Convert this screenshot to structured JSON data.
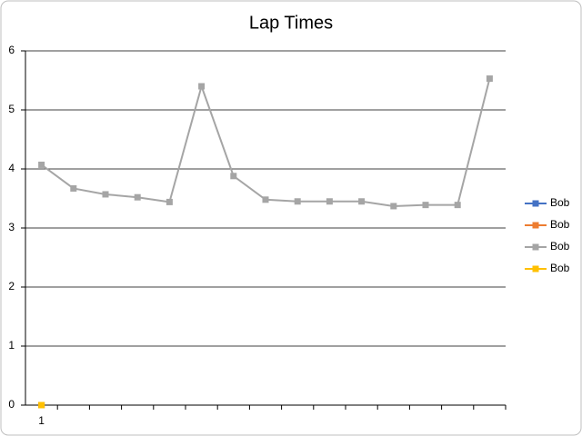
{
  "chart_data": {
    "type": "line",
    "title": "Lap Times",
    "categories": [
      "1",
      null,
      null,
      null,
      null,
      null,
      null,
      null,
      null,
      null,
      null,
      null,
      null,
      null,
      null
    ],
    "series": [
      {
        "name": "Bob",
        "color": "#4472c4",
        "values": [
          0,
          null,
          null,
          null,
          null,
          null,
          null,
          null,
          null,
          null,
          null,
          null,
          null,
          null,
          null
        ]
      },
      {
        "name": "Bob",
        "color": "#ed7d31",
        "values": [
          0,
          null,
          null,
          null,
          null,
          null,
          null,
          null,
          null,
          null,
          null,
          null,
          null,
          null,
          null
        ]
      },
      {
        "name": "Bob",
        "color": "#a5a5a5",
        "values": [
          4.07,
          3.67,
          3.57,
          3.52,
          3.44,
          5.4,
          3.88,
          3.48,
          3.45,
          3.45,
          3.45,
          3.37,
          3.39,
          3.39,
          5.53
        ]
      },
      {
        "name": "Bob",
        "color": "#ffc000",
        "values": [
          0,
          null,
          null,
          null,
          null,
          null,
          null,
          null,
          null,
          null,
          null,
          null,
          null,
          null,
          null
        ]
      }
    ],
    "ylim": [
      0,
      6
    ],
    "yticks": [
      0,
      1,
      2,
      3,
      4,
      5,
      6
    ],
    "grid": true,
    "legend": "right"
  }
}
